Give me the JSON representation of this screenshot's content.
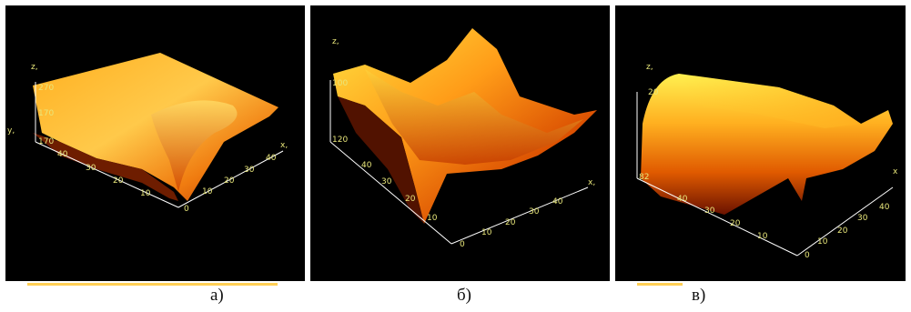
{
  "panels": [
    {
      "id": "a",
      "caption": "а)",
      "axes": {
        "z": "z,",
        "y": "y,",
        "x": "x,"
      },
      "z_ticks": [
        "270",
        "170",
        "170"
      ],
      "y_ticks": [
        "40",
        "30",
        "20",
        "10"
      ],
      "x_ticks": [
        "0",
        "10",
        "20",
        "30",
        "40"
      ]
    },
    {
      "id": "b",
      "caption": "б)",
      "axes": {
        "z": "z,",
        "x": "x,"
      },
      "z_ticks": [
        "100",
        "120"
      ],
      "y_ticks": [
        "40",
        "30",
        "20",
        "10"
      ],
      "x_ticks": [
        "0",
        "10",
        "20",
        "30",
        "40"
      ]
    },
    {
      "id": "c",
      "caption": "в)",
      "axes": {
        "z": "z,",
        "x": "x"
      },
      "z_ticks": [
        "20",
        "82"
      ],
      "y_ticks": [
        "40",
        "30",
        "20",
        "10"
      ],
      "x_ticks": [
        "0",
        "10",
        "20",
        "30",
        "40"
      ]
    }
  ],
  "colors": {
    "background": "#000000",
    "surface_light": "#ffe23a",
    "surface_mid": "#ff9a10",
    "surface_dark": "#c03000",
    "axis_text": "#e8e67a"
  }
}
